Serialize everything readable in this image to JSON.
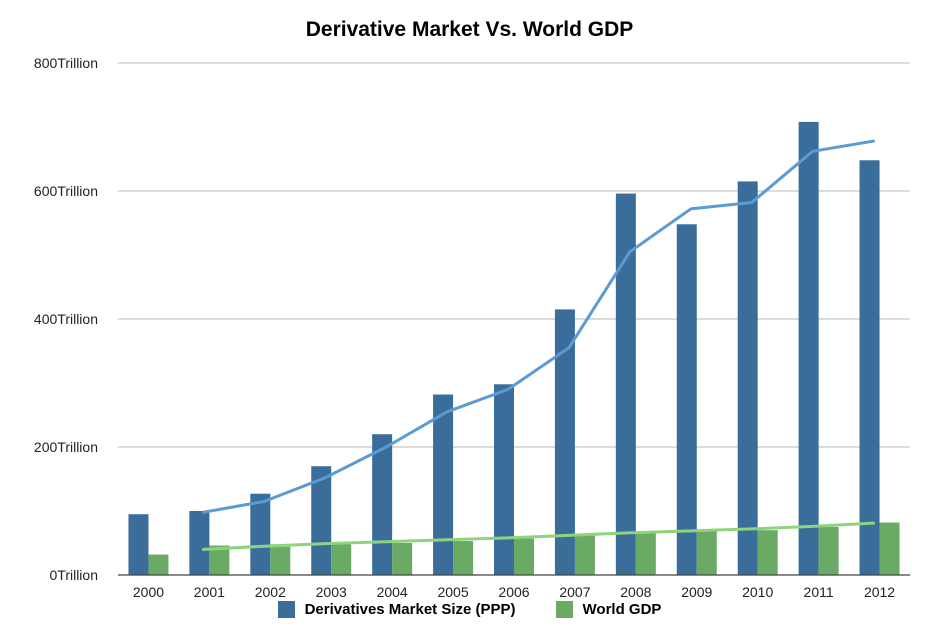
{
  "chart_data": {
    "type": "bar",
    "title": "Derivative Market Vs. World GDP",
    "xlabel": "",
    "ylabel": "",
    "categories": [
      "2000",
      "2001",
      "2002",
      "2003",
      "2004",
      "2005",
      "2006",
      "2007",
      "2008",
      "2009",
      "2010",
      "2011",
      "2012"
    ],
    "series": [
      {
        "name": "Derivatives Market Size (PPP)",
        "color": "#3a6d9a",
        "values": [
          95,
          100,
          127,
          170,
          220,
          282,
          298,
          415,
          596,
          548,
          615,
          708,
          648
        ]
      },
      {
        "name": "World GDP",
        "color": "#6aaa64",
        "values": [
          32,
          46,
          48,
          48,
          50,
          53,
          57,
          62,
          67,
          69,
          70,
          75,
          82
        ]
      }
    ],
    "trendlines": [
      {
        "series": "Derivatives Market Size (PPP)",
        "color": "#5b9bd5",
        "from_index": 1,
        "values": [
          98,
          115,
          152,
          200,
          255,
          290,
          355,
          505,
          572,
          582,
          662,
          678
        ]
      },
      {
        "series": "World GDP",
        "color": "#8fd37f",
        "from_index": 1,
        "values": [
          40,
          45,
          49,
          52,
          55,
          58,
          62,
          66,
          69,
          72,
          76,
          81
        ]
      }
    ],
    "ylim": [
      0,
      800
    ],
    "yticks": [
      {
        "value": 0,
        "label": "0Trillion"
      },
      {
        "value": 200,
        "label": "200Trillion"
      },
      {
        "value": 400,
        "label": "400Trillion"
      },
      {
        "value": 600,
        "label": "600Trillion"
      },
      {
        "value": 800,
        "label": "800Trillion"
      }
    ],
    "grid": true,
    "legend_position": "bottom"
  }
}
